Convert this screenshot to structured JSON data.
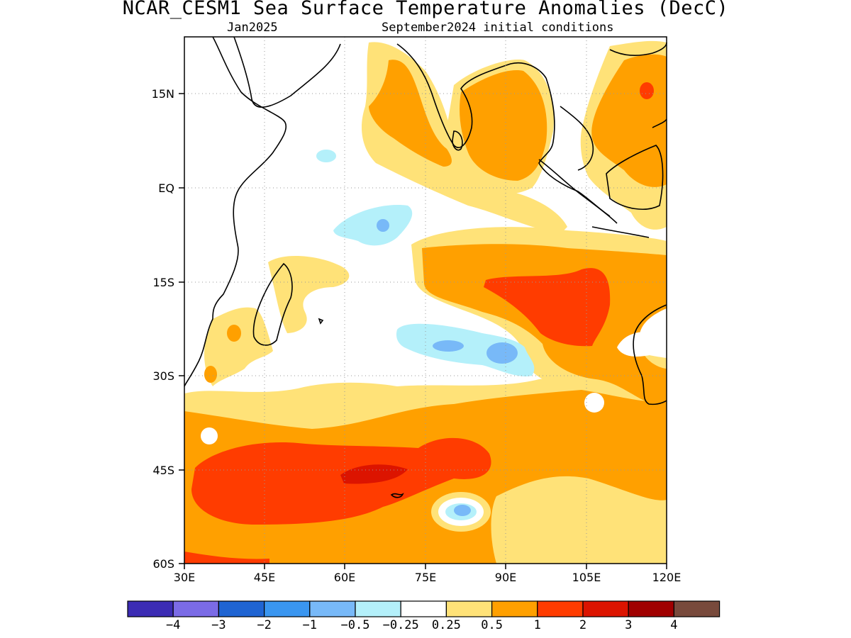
{
  "title": "NCAR_CESM1 Sea Surface Temperature Anomalies (DecC)",
  "subtitle_left": "Jan2025",
  "subtitle_right": "September2024 initial conditions",
  "map": {
    "lon_range": [
      30,
      120
    ],
    "lat_range": [
      -60,
      24
    ],
    "lat_ticks": [
      "15N",
      "EQ",
      "15S",
      "30S",
      "45S",
      "60S"
    ],
    "lon_ticks": [
      "30E",
      "45E",
      "60E",
      "75E",
      "90E",
      "105E",
      "120E"
    ],
    "grid": "dotted"
  },
  "colorbar": {
    "colors": [
      "#3c2cb4",
      "#7b6be6",
      "#1f64d2",
      "#3a96f0",
      "#78b9f8",
      "#b4f0fa",
      "#ffffff",
      "#ffe278",
      "#ffa000",
      "#ff3c00",
      "#dc1400",
      "#a00000",
      "#784a3c"
    ],
    "labels": [
      "−4",
      "−3",
      "−2",
      "−1",
      "−0.5",
      "−0.25",
      "0.25",
      "0.5",
      "1",
      "2",
      "3",
      "4"
    ]
  }
}
